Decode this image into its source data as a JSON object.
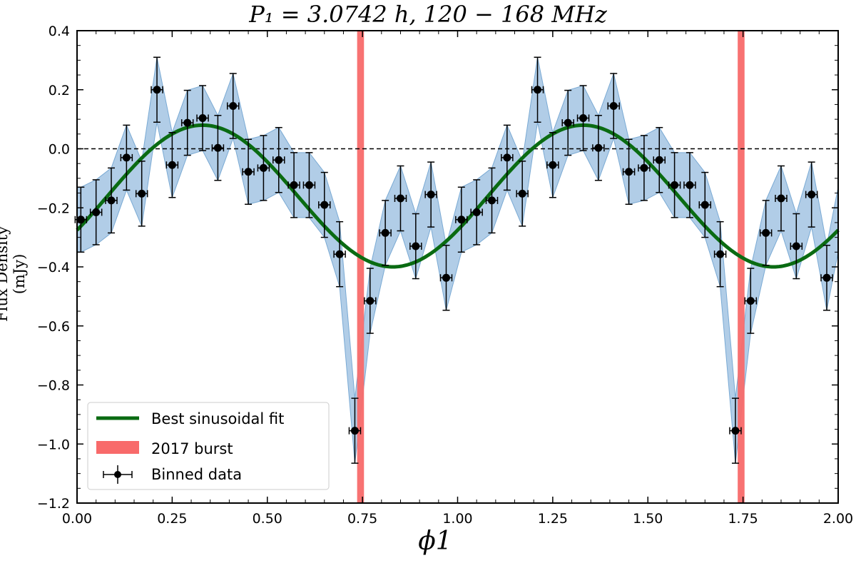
{
  "chart_data": {
    "type": "scatter",
    "title": "P₁ = 3.0742 h,    120 − 168 MHz",
    "xlabel": "ϕ1",
    "ylabel": "Flux Density (mJy)",
    "xlim": [
      0.0,
      2.0
    ],
    "ylim": [
      -1.2,
      0.4
    ],
    "xticks": [
      "0.00",
      "0.25",
      "0.50",
      "0.75",
      "1.00",
      "1.25",
      "1.50",
      "1.75",
      "2.00"
    ],
    "yticks": [
      "−1.2",
      "−1.0",
      "−0.8",
      "−0.6",
      "−0.4",
      "−0.2",
      "0.0",
      "0.2",
      "0.4"
    ],
    "reference_line_y": 0.0,
    "burst_regions": [
      [
        0.736,
        0.754
      ],
      [
        1.736,
        1.754
      ]
    ],
    "fit": {
      "name": "Best sinusoidal fit",
      "amplitude": 0.24,
      "offset": -0.16,
      "phase_peak": 0.33,
      "color": "#0a6b12"
    },
    "binned_data": {
      "name": "Binned data",
      "x": [
        0.01,
        0.05,
        0.09,
        0.13,
        0.17,
        0.21,
        0.25,
        0.29,
        0.33,
        0.37,
        0.41,
        0.45,
        0.49,
        0.53,
        0.57,
        0.61,
        0.65,
        0.69,
        0.73,
        0.77,
        0.81,
        0.85,
        0.89,
        0.93,
        0.97
      ],
      "y": [
        -0.24,
        -0.215,
        -0.175,
        -0.03,
        -0.152,
        0.2,
        -0.055,
        0.088,
        0.104,
        0.003,
        0.145,
        -0.078,
        -0.065,
        -0.038,
        -0.123,
        -0.123,
        -0.19,
        -0.357,
        -0.955,
        -0.515,
        -0.285,
        -0.168,
        -0.33,
        -0.155,
        -0.437
      ],
      "yerr": 0.11,
      "xerr": 0.015
    },
    "legend": {
      "position": "lower-left",
      "entries": [
        "Best sinusoidal fit",
        "2017 burst",
        "Binned data"
      ]
    },
    "colors": {
      "band": "#a9c8e4",
      "band_edge": "#7aaad4",
      "burst": "#f86a6a",
      "points": "#000000"
    }
  }
}
